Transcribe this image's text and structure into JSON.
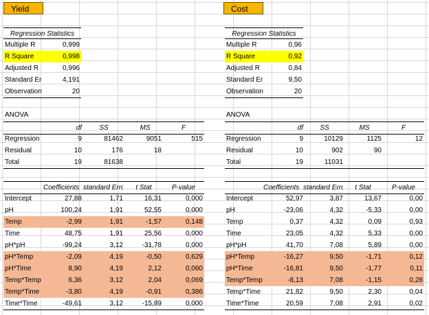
{
  "sheets": [
    {
      "key": "yield",
      "title": "Yield",
      "regression_statistics": {
        "heading": "Regression Statistics",
        "rows": [
          {
            "label": "Multiple R",
            "value": "0,999",
            "highlight": false
          },
          {
            "label": "R Square",
            "value": "0,998",
            "highlight": true
          },
          {
            "label": "Adjusted R",
            "value": "0,996",
            "highlight": false
          },
          {
            "label": "Standard Er",
            "value": "4,191",
            "highlight": false
          },
          {
            "label": "Observation",
            "value": "20",
            "highlight": false
          }
        ]
      },
      "anova": {
        "heading": "ANOVA",
        "columns": [
          "",
          "df",
          "SS",
          "MS",
          "F"
        ],
        "rows": [
          {
            "cells": [
              "Regression",
              "9",
              "81462",
              "9051",
              "515"
            ]
          },
          {
            "cells": [
              "Residual",
              "10",
              "176",
              "18",
              ""
            ]
          },
          {
            "cells": [
              "Total",
              "19",
              "81638",
              "",
              ""
            ]
          }
        ]
      },
      "coefficients": {
        "columns": [
          "",
          "Coefficients",
          "standard Erro",
          "t Stat",
          "P-value"
        ],
        "rows": [
          {
            "cells": [
              "Intercept",
              "27,88",
              "1,71",
              "16,31",
              "0,000"
            ],
            "highlight": false
          },
          {
            "cells": [
              "pH",
              "100,24",
              "1,91",
              "52,55",
              "0,000"
            ],
            "highlight": false
          },
          {
            "cells": [
              "Temp",
              "-2,99",
              "1,91",
              "-1,57",
              "0,148"
            ],
            "highlight": true
          },
          {
            "cells": [
              "Time",
              "48,75",
              "1,91",
              "25,56",
              "0,000"
            ],
            "highlight": false
          },
          {
            "cells": [
              "pH*pH",
              "-99,24",
              "3,12",
              "-31,78",
              "0,000"
            ],
            "highlight": false
          },
          {
            "cells": [
              "pH*Temp",
              "-2,09",
              "4,19",
              "-0,50",
              "0,629"
            ],
            "highlight": true
          },
          {
            "cells": [
              "pH*Time",
              "8,90",
              "4,19",
              "2,12",
              "0,060"
            ],
            "highlight": true
          },
          {
            "cells": [
              "Temp*Temp",
              "6,36",
              "3,12",
              "2,04",
              "0,069"
            ],
            "highlight": true
          },
          {
            "cells": [
              "Temp*Time",
              "-3,80",
              "4,19",
              "-0,91",
              "0,386"
            ],
            "highlight": true
          },
          {
            "cells": [
              "Time*Time",
              "-49,61",
              "3,12",
              "-15,89",
              "0,000"
            ],
            "highlight": false
          }
        ]
      }
    },
    {
      "key": "cost",
      "title": "Cost",
      "regression_statistics": {
        "heading": "Regression Statistics",
        "rows": [
          {
            "label": "Multiple R",
            "value": "0,96",
            "highlight": false
          },
          {
            "label": "R Square",
            "value": "0,92",
            "highlight": true
          },
          {
            "label": "Adjusted R",
            "value": "0,84",
            "highlight": false
          },
          {
            "label": "Standard Er",
            "value": "9,50",
            "highlight": false
          },
          {
            "label": "Observation",
            "value": "20",
            "highlight": false
          }
        ]
      },
      "anova": {
        "heading": "ANOVA",
        "columns": [
          "",
          "df",
          "SS",
          "MS",
          "F"
        ],
        "rows": [
          {
            "cells": [
              "Regression",
              "9",
              "10129",
              "1125",
              "12"
            ]
          },
          {
            "cells": [
              "Residual",
              "10",
              "902",
              "90",
              ""
            ]
          },
          {
            "cells": [
              "Total",
              "19",
              "11031",
              "",
              ""
            ]
          }
        ]
      },
      "coefficients": {
        "columns": [
          "",
          "Coefficients",
          "standard Erro",
          "t Stat",
          "P-value"
        ],
        "rows": [
          {
            "cells": [
              "Intercept",
              "52,97",
              "3,87",
              "13,67",
              "0,00"
            ],
            "highlight": false
          },
          {
            "cells": [
              "pH",
              "-23,06",
              "4,32",
              "-5,33",
              "0,00"
            ],
            "highlight": false
          },
          {
            "cells": [
              "Temp",
              "0,37",
              "4,32",
              "0,09",
              "0,93"
            ],
            "highlight": false
          },
          {
            "cells": [
              "Time",
              "23,05",
              "4,32",
              "5,33",
              "0,00"
            ],
            "highlight": false
          },
          {
            "cells": [
              "pH*pH",
              "41,70",
              "7,08",
              "5,89",
              "0,00"
            ],
            "highlight": false
          },
          {
            "cells": [
              "pH*Temp",
              "-16,27",
              "9,50",
              "-1,71",
              "0,12"
            ],
            "highlight": true
          },
          {
            "cells": [
              "pH*Time",
              "-16,81",
              "9,50",
              "-1,77",
              "0,11"
            ],
            "highlight": true
          },
          {
            "cells": [
              "Temp*Temp",
              "-8,13",
              "7,08",
              "-1,15",
              "0,28"
            ],
            "highlight": true
          },
          {
            "cells": [
              "Temp*Time",
              "21,82",
              "9,50",
              "2,30",
              "0,04"
            ],
            "highlight": false
          },
          {
            "cells": [
              "Time*Time",
              "20,59",
              "7,08",
              "2,91",
              "0,02"
            ],
            "highlight": false
          }
        ]
      }
    }
  ],
  "colors": {
    "header_fill": "#f7b500",
    "yellow_highlight": "#ffff00",
    "orange_highlight": "#f5b894",
    "gridline": "#d8d8d8"
  }
}
